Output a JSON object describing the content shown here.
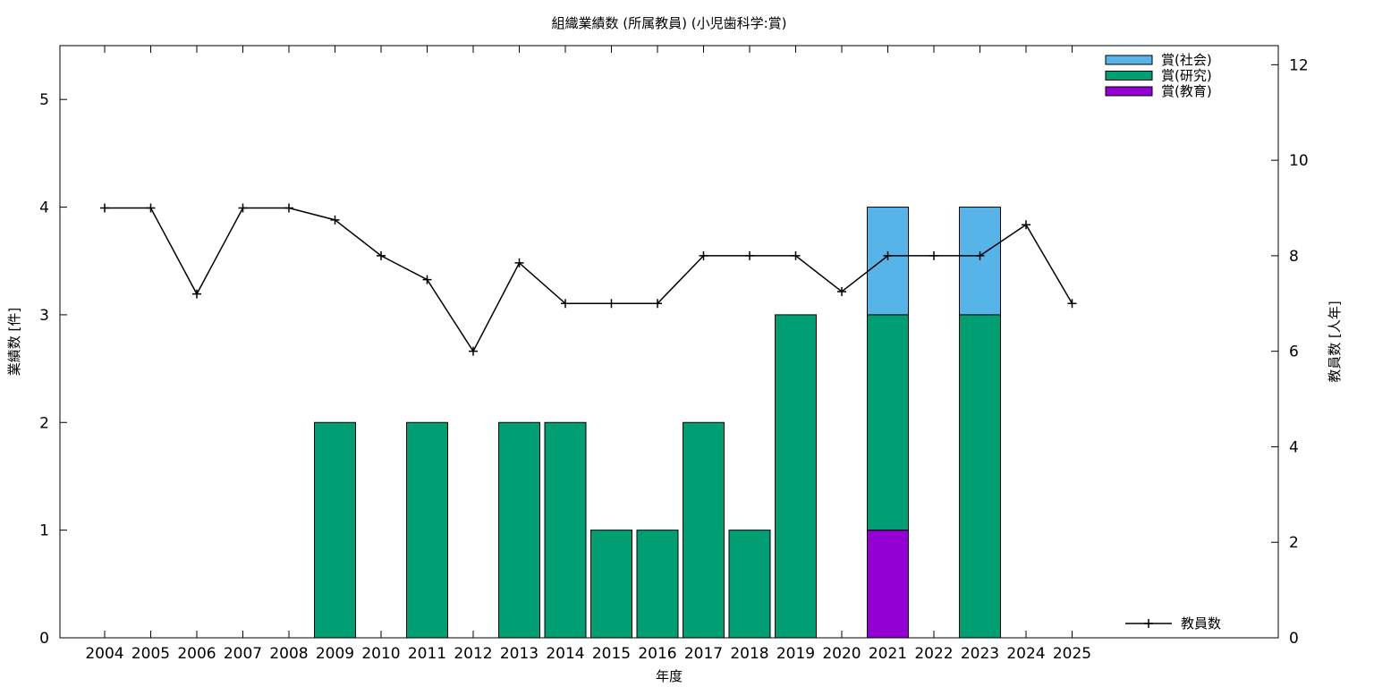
{
  "chart_data": {
    "type": "bar",
    "title": "組織業績数 (所属教員) (小児歯科学:賞)",
    "xlabel": "年度",
    "ylabel": "業績数 [件]",
    "y2label": "教員数 [人年]",
    "ylim": [
      0,
      5.5
    ],
    "y2lim": [
      0,
      12.4
    ],
    "yticks": [
      "0",
      "1",
      "2",
      "3",
      "4",
      "5"
    ],
    "y2ticks": [
      "0",
      "2",
      "4",
      "6",
      "8",
      "10",
      "12"
    ],
    "categories": [
      "2004",
      "2005",
      "2006",
      "2007",
      "2008",
      "2009",
      "2010",
      "2011",
      "2012",
      "2013",
      "2014",
      "2015",
      "2016",
      "2017",
      "2018",
      "2019",
      "2020",
      "2021",
      "2022",
      "2023",
      "2024",
      "2025"
    ],
    "stacked": true,
    "legend_position": "top-right",
    "series": [
      {
        "name": "賞(教育)",
        "color": "#9400d3",
        "values": [
          0,
          0,
          0,
          0,
          0,
          0,
          0,
          0,
          0,
          0,
          0,
          0,
          0,
          0,
          0,
          0,
          0,
          1,
          0,
          0,
          0,
          0
        ]
      },
      {
        "name": "賞(研究)",
        "color": "#009e73",
        "values": [
          0,
          0,
          0,
          0,
          0,
          2,
          0,
          2,
          0,
          2,
          2,
          1,
          1,
          2,
          1,
          3,
          0,
          2,
          0,
          3,
          0,
          0
        ]
      },
      {
        "name": "賞(社会)",
        "color": "#56b4e9",
        "values": [
          0,
          0,
          0,
          0,
          0,
          0,
          0,
          0,
          0,
          0,
          0,
          0,
          0,
          0,
          0,
          0,
          0,
          1,
          0,
          1,
          0,
          0
        ]
      }
    ],
    "line_series": {
      "name": "教員数",
      "axis": "y2",
      "color": "#000000",
      "values": [
        9,
        9,
        7.2,
        9,
        9,
        8.75,
        8,
        7.5,
        6,
        7.85,
        7,
        7,
        7,
        8,
        8,
        8,
        7.25,
        8,
        8,
        8,
        8.65,
        7
      ]
    }
  }
}
